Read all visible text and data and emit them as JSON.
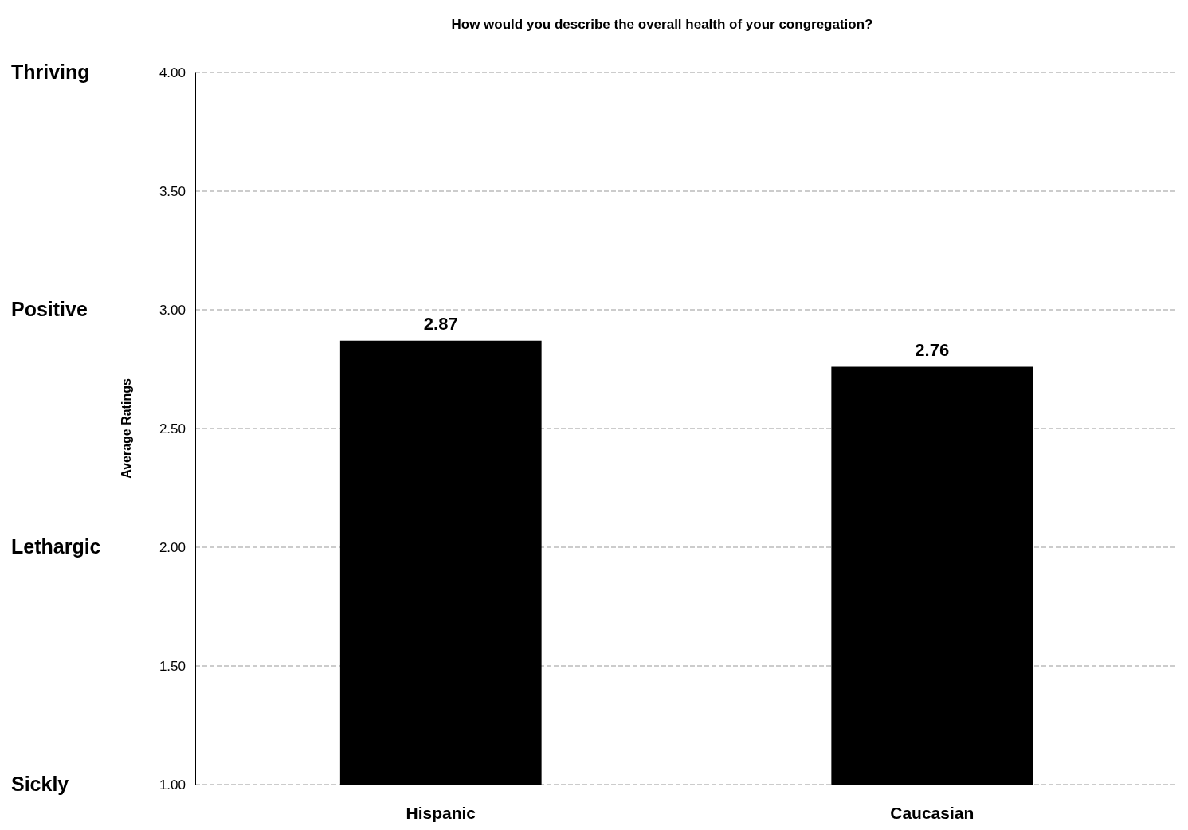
{
  "chart_data": {
    "type": "bar",
    "title": "How would you describe the overall health of your congregation?",
    "ylabel": "Average Ratings",
    "categories": [
      "Hispanic",
      "Caucasian"
    ],
    "values": [
      2.87,
      2.76
    ],
    "color": "#000000",
    "ylim": [
      1,
      4
    ],
    "yticks": [
      {
        "value": 1,
        "label": "1.00"
      },
      {
        "value": 1.5,
        "label": "1.50"
      },
      {
        "value": 2,
        "label": "2.00"
      },
      {
        "value": 2.5,
        "label": "2.50"
      },
      {
        "value": 3,
        "label": "3.00"
      },
      {
        "value": 3.5,
        "label": "3.50"
      },
      {
        "value": 4,
        "label": "4.00"
      }
    ],
    "grid": "y",
    "data_labels": true,
    "annotations": [
      "Thriving",
      "Positive",
      "Lethargic",
      "Sickly"
    ]
  }
}
